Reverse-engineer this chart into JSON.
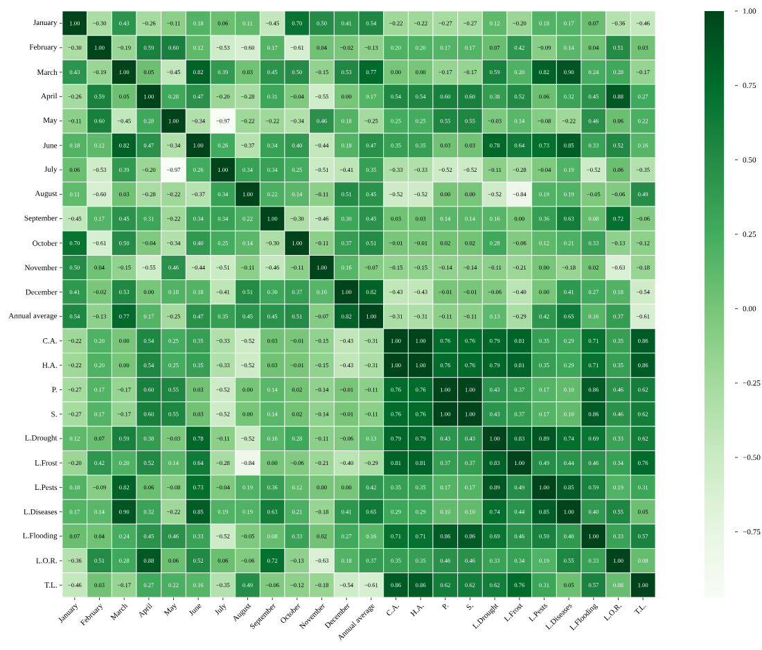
{
  "chart_data": {
    "type": "heatmap",
    "categories": [
      "January",
      "February",
      "March",
      "April",
      "May",
      "June",
      "July",
      "August",
      "September",
      "October",
      "November",
      "December",
      "Annual average",
      "C.A.",
      "H.A.",
      "P.",
      "S.",
      "L.Drought",
      "L.Frost",
      "L.Pests",
      "L.Diseases",
      "L.Flooding",
      "L.O.R.",
      "T.L."
    ],
    "y_categories": [
      "January",
      "February",
      "March",
      "April",
      "May",
      "June",
      "July",
      "August",
      "September",
      "October",
      "November",
      "December",
      "Annual average",
      "C.A.",
      "H.A.",
      "P.",
      "S.",
      "L.Drought",
      "L.Frost",
      "L.Pests",
      "L.Diseases",
      "L.Flooding",
      "L.O.R.",
      "T.L."
    ],
    "cells": [
      [
        1.0,
        -0.3,
        0.43,
        -0.26,
        -0.11,
        0.18,
        0.06,
        0.11,
        -0.45,
        0.7,
        0.5,
        0.41,
        0.54,
        -0.22,
        -0.22,
        -0.27,
        -0.27,
        0.12,
        -0.2,
        0.18,
        0.17,
        0.07,
        -0.36,
        -0.46
      ],
      [
        -0.3,
        1.0,
        -0.19,
        0.59,
        0.6,
        0.12,
        -0.53,
        -0.6,
        0.17,
        -0.61,
        0.04,
        -0.02,
        -0.13,
        0.2,
        0.2,
        0.17,
        0.17,
        0.07,
        0.42,
        -0.09,
        0.14,
        0.04,
        0.51,
        0.03
      ],
      [
        0.43,
        -0.19,
        1.0,
        0.05,
        -0.45,
        0.82,
        0.39,
        0.03,
        0.45,
        0.5,
        -0.15,
        0.53,
        0.77,
        0.0,
        0.0,
        -0.17,
        -0.17,
        0.59,
        0.2,
        0.82,
        0.9,
        0.24,
        0.28,
        -0.17
      ],
      [
        -0.26,
        0.59,
        0.05,
        1.0,
        0.28,
        0.47,
        -0.2,
        -0.28,
        0.31,
        -0.04,
        -0.55,
        0.0,
        0.17,
        0.54,
        0.54,
        0.6,
        0.6,
        0.38,
        0.52,
        0.06,
        0.32,
        0.45,
        0.88,
        0.27
      ],
      [
        -0.11,
        0.6,
        -0.45,
        0.28,
        1.0,
        -0.34,
        -0.97,
        -0.22,
        -0.22,
        -0.34,
        0.46,
        0.18,
        -0.25,
        0.25,
        0.25,
        0.55,
        0.55,
        -0.03,
        0.14,
        -0.08,
        -0.22,
        0.46,
        0.06,
        0.22
      ],
      [
        0.18,
        0.12,
        0.82,
        0.47,
        -0.34,
        1.0,
        0.26,
        -0.37,
        0.34,
        0.4,
        -0.44,
        0.18,
        0.47,
        0.35,
        0.35,
        0.03,
        0.03,
        0.78,
        0.64,
        0.73,
        0.85,
        0.33,
        0.52,
        0.16
      ],
      [
        0.06,
        -0.53,
        0.39,
        -0.2,
        -0.97,
        0.26,
        1.0,
        0.34,
        0.34,
        0.25,
        -0.51,
        -0.41,
        0.35,
        -0.33,
        -0.33,
        -0.52,
        -0.52,
        -0.11,
        -0.28,
        -0.04,
        0.19,
        -0.52,
        0.06,
        -0.35
      ],
      [
        0.11,
        -0.6,
        0.03,
        -0.28,
        -0.22,
        -0.37,
        0.34,
        1.0,
        0.22,
        0.14,
        -0.11,
        0.51,
        0.45,
        -0.52,
        -0.52,
        0.0,
        0.0,
        -0.52,
        -0.84,
        0.19,
        0.19,
        -0.05,
        -0.06,
        0.49
      ],
      [
        -0.45,
        0.17,
        0.45,
        0.31,
        -0.22,
        0.34,
        0.34,
        0.22,
        1.0,
        -0.3,
        -0.46,
        0.3,
        0.45,
        0.03,
        0.03,
        0.14,
        0.14,
        0.16,
        0.0,
        0.36,
        0.63,
        0.08,
        0.72,
        -0.06
      ],
      [
        0.7,
        -0.61,
        0.5,
        -0.04,
        -0.34,
        0.4,
        0.25,
        0.14,
        -0.3,
        1.0,
        -0.11,
        0.37,
        0.51,
        -0.01,
        -0.01,
        0.02,
        0.02,
        0.28,
        -0.06,
        0.12,
        0.21,
        0.33,
        -0.13,
        -0.12
      ],
      [
        0.5,
        0.04,
        -0.15,
        -0.55,
        0.46,
        -0.44,
        -0.51,
        -0.11,
        -0.46,
        -0.11,
        1.0,
        0.16,
        -0.07,
        -0.15,
        -0.15,
        -0.14,
        -0.14,
        -0.11,
        -0.21,
        0.0,
        -0.18,
        0.02,
        -0.63,
        -0.18
      ],
      [
        0.41,
        -0.02,
        0.53,
        0.0,
        0.18,
        0.18,
        -0.41,
        0.51,
        0.3,
        0.37,
        0.16,
        1.0,
        0.82,
        -0.43,
        -0.43,
        -0.01,
        -0.01,
        -0.06,
        -0.4,
        0.0,
        0.41,
        0.27,
        0.18,
        -0.54
      ],
      [
        0.54,
        -0.13,
        0.77,
        0.17,
        -0.25,
        0.47,
        0.35,
        0.45,
        0.45,
        0.51,
        -0.07,
        0.82,
        1.0,
        -0.31,
        -0.31,
        -0.11,
        -0.11,
        0.13,
        -0.29,
        0.42,
        0.65,
        0.16,
        0.37,
        -0.61
      ],
      [
        -0.22,
        0.2,
        0.0,
        0.54,
        0.25,
        0.35,
        -0.33,
        -0.52,
        0.03,
        -0.01,
        -0.15,
        -0.43,
        -0.31,
        1.0,
        1.0,
        0.76,
        0.76,
        0.79,
        0.81,
        0.35,
        0.29,
        0.71,
        0.35,
        0.86
      ],
      [
        -0.22,
        0.2,
        0.0,
        0.54,
        0.25,
        0.35,
        -0.33,
        -0.52,
        0.03,
        -0.01,
        -0.15,
        -0.43,
        -0.31,
        1.0,
        1.0,
        0.76,
        0.76,
        0.79,
        0.81,
        0.35,
        0.29,
        0.71,
        0.35,
        0.86
      ],
      [
        -0.27,
        0.17,
        -0.17,
        0.6,
        0.55,
        0.03,
        -0.52,
        0.0,
        0.14,
        0.02,
        -0.14,
        -0.01,
        -0.11,
        0.76,
        0.76,
        1.0,
        1.0,
        0.43,
        0.37,
        0.17,
        0.1,
        0.86,
        0.46,
        0.62
      ],
      [
        -0.27,
        0.17,
        -0.17,
        0.6,
        0.55,
        0.03,
        -0.52,
        0.0,
        0.14,
        0.02,
        -0.14,
        -0.01,
        -0.11,
        0.76,
        0.76,
        1.0,
        1.0,
        0.43,
        0.37,
        0.17,
        0.1,
        0.86,
        0.46,
        0.62
      ],
      [
        0.12,
        0.07,
        0.59,
        0.38,
        -0.03,
        0.78,
        -0.11,
        -0.52,
        0.16,
        0.28,
        -0.11,
        -0.06,
        0.13,
        0.79,
        0.79,
        0.43,
        0.43,
        1.0,
        0.83,
        0.89,
        0.74,
        0.69,
        0.33,
        0.62
      ],
      [
        -0.2,
        0.42,
        0.2,
        0.52,
        0.14,
        0.64,
        -0.28,
        -0.84,
        0.0,
        -0.06,
        -0.21,
        -0.4,
        -0.29,
        0.81,
        0.81,
        0.37,
        0.37,
        0.83,
        1.0,
        0.49,
        0.44,
        0.46,
        0.34,
        0.76
      ],
      [
        0.18,
        -0.09,
        0.82,
        0.06,
        -0.08,
        0.73,
        -0.04,
        0.19,
        0.36,
        0.12,
        0.0,
        0.0,
        0.42,
        0.35,
        0.35,
        0.17,
        0.17,
        0.89,
        0.49,
        1.0,
        0.85,
        0.59,
        0.19,
        0.31
      ],
      [
        0.17,
        0.14,
        0.9,
        0.32,
        -0.22,
        0.85,
        0.19,
        0.19,
        0.63,
        0.21,
        -0.18,
        0.41,
        0.65,
        0.29,
        0.29,
        0.1,
        0.1,
        0.74,
        0.44,
        0.85,
        1.0,
        0.4,
        0.55,
        0.05
      ],
      [
        0.07,
        0.04,
        0.24,
        0.45,
        0.46,
        0.33,
        -0.52,
        -0.05,
        0.08,
        0.33,
        0.02,
        0.27,
        0.16,
        0.71,
        0.71,
        0.86,
        0.86,
        0.69,
        0.46,
        0.59,
        0.4,
        1.0,
        0.33,
        0.57
      ],
      [
        -0.36,
        0.51,
        0.28,
        0.88,
        0.06,
        0.52,
        0.06,
        -0.06,
        0.72,
        -0.13,
        -0.63,
        0.18,
        0.37,
        0.35,
        0.35,
        0.46,
        0.46,
        0.33,
        0.34,
        0.19,
        0.55,
        0.33,
        1.0,
        0.08
      ],
      [
        -0.46,
        0.03,
        -0.17,
        0.27,
        0.22,
        0.16,
        -0.35,
        0.49,
        -0.06,
        -0.12,
        -0.18,
        -0.54,
        -0.61,
        0.86,
        0.86,
        0.62,
        0.62,
        0.62,
        0.76,
        0.31,
        0.05,
        0.57,
        0.08,
        1.0
      ]
    ],
    "cell_labels": [
      [
        "1.00",
        "−0.30",
        "0.43",
        "−0.26",
        "−0.11",
        "0.18",
        "0.06",
        "0.11",
        "−0.45",
        "0.70",
        "0.50",
        "0.41",
        "0.54",
        "−0.22",
        "−0.22",
        "−0.27",
        "−0.27",
        "0.12",
        "−0.20",
        "0.18",
        "0.17",
        "0.07",
        "−0.36",
        "−0.46"
      ],
      [
        "−0.30",
        "1.00",
        "−0.19",
        "0.59",
        "0.60",
        "0.12",
        "−0.53",
        "−0.60",
        "0.17",
        "−0.61",
        "0.04",
        "−0.02",
        "−0.13",
        "0.20",
        "0.20",
        "0.17",
        "0.17",
        "0.07",
        "0.42",
        "−0.09",
        "0.14",
        "0.04",
        "0.51",
        "0.03"
      ],
      [
        "0.43",
        "−0.19",
        "1.00",
        "0.05",
        "−0.45",
        "0.82",
        "0.39",
        "0.03",
        "0.45",
        "0.50",
        "−0.15",
        "0.53",
        "0.77",
        "0.00",
        "0.00",
        "−0.17",
        "−0.17",
        "0.59",
        "0.20",
        "0.82",
        "0.90",
        "0.24",
        "0.28",
        "−0.17"
      ],
      [
        "−0.26",
        "0.59",
        "0.05",
        "1.00",
        "0.28",
        "0.47",
        "−0.20",
        "−0.28",
        "0.31",
        "−0.04",
        "−0.55",
        "0.00",
        "0.17",
        "0.54",
        "0.54",
        "0.60",
        "0.60",
        "0.38",
        "0.52",
        "0.06",
        "0.32",
        "0.45",
        "0.88",
        "0.27"
      ],
      [
        "−0.11",
        "0.60",
        "−0.45",
        "0.28",
        "1.00",
        "−0.34",
        "−0.97",
        "−0.22",
        "−0.22",
        "−0.34",
        "0.46",
        "0.18",
        "−0.25",
        "0.25",
        "0.25",
        "0.55",
        "0.55",
        "−0.03",
        "0.14",
        "−0.08",
        "−0.22",
        "0.46",
        "0.06",
        "0.22"
      ],
      [
        "0.18",
        "0.12",
        "0.82",
        "0.47",
        "−0.34",
        "1.00",
        "0.26",
        "−0.37",
        "0.34",
        "0.40",
        "−0.44",
        "0.18",
        "0.47",
        "0.35",
        "0.35",
        "0.03",
        "0.03",
        "0.78",
        "0.64",
        "0.73",
        "0.85",
        "0.33",
        "0.52",
        "0.16"
      ],
      [
        "0.06",
        "−0.53",
        "0.39",
        "−0.20",
        "−0.97",
        "0.26",
        "1.00",
        "0.34",
        "0.34",
        "0.25",
        "−0.51",
        "−0.41",
        "0.35",
        "−0.33",
        "−0.33",
        "−0.52",
        "−0.52",
        "−0.11",
        "−0.28",
        "−0.04",
        "0.19",
        "−0.52",
        "0.06",
        "−0.35"
      ],
      [
        "0.11",
        "−0.60",
        "0.03",
        "−0.28",
        "−0.22",
        "−0.37",
        "0.34",
        "1.00",
        "0.22",
        "0.14",
        "−0.11",
        "0.51",
        "0.45",
        "−0.52",
        "−0.52",
        "0.00",
        "0.00",
        "−0.52",
        "−0.84",
        "0.19",
        "0.19",
        "−0.05",
        "−0.06",
        "0.49"
      ],
      [
        "−0.45",
        "0.17",
        "0.45",
        "0.31",
        "−0.22",
        "0.34",
        "0.34",
        "0.22",
        "1.00",
        "−0.30",
        "−0.46",
        "0.30",
        "0.45",
        "0.03",
        "0.03",
        "0.14",
        "0.14",
        "0.16",
        "0.00",
        "0.36",
        "0.63",
        "0.08",
        "0.72",
        "−0.06"
      ],
      [
        "0.70",
        "−0.61",
        "0.50",
        "−0.04",
        "−0.34",
        "0.40",
        "0.25",
        "0.14",
        "−0.30",
        "1.00",
        "−0.11",
        "0.37",
        "0.51",
        "−0.01",
        "−0.01",
        "0.02",
        "0.02",
        "0.28",
        "−0.06",
        "0.12",
        "0.21",
        "0.33",
        "−0.13",
        "−0.12"
      ],
      [
        "0.50",
        "0.04",
        "−0.15",
        "−0.55",
        "0.46",
        "−0.44",
        "−0.51",
        "−0.11",
        "−0.46",
        "−0.11",
        "1.00",
        "0.16",
        "−0.07",
        "−0.15",
        "−0.15",
        "−0.14",
        "−0.14",
        "−0.11",
        "−0.21",
        "0.00",
        "−0.18",
        "0.02",
        "−0.63",
        "−0.18"
      ],
      [
        "0.41",
        "−0.02",
        "0.53",
        "0.00",
        "0.18",
        "0.18",
        "−0.41",
        "0.51",
        "0.30",
        "0.37",
        "0.16",
        "1.00",
        "0.82",
        "−0.43",
        "−0.43",
        "−0.01",
        "−0.01",
        "−0.06",
        "−0.40",
        "0.00",
        "0.41",
        "0.27",
        "0.18",
        "−0.54"
      ],
      [
        "0.54",
        "−0.13",
        "0.77",
        "0.17",
        "−0.25",
        "0.47",
        "0.35",
        "0.45",
        "0.45",
        "0.51",
        "−0.07",
        "0.82",
        "1.00",
        "−0.31",
        "−0.31",
        "−0.11",
        "−0.11",
        "0.13",
        "−0.29",
        "0.42",
        "0.65",
        "0.16",
        "0.37",
        "−0.61"
      ],
      [
        "−0.22",
        "0.20",
        "0.00",
        "0.54",
        "0.25",
        "0.35",
        "−0.33",
        "−0.52",
        "0.03",
        "−0.01",
        "−0.15",
        "−0.43",
        "−0.31",
        "1.00",
        "1.00",
        "0.76",
        "0.76",
        "0.79",
        "0.81",
        "0.35",
        "0.29",
        "0.71",
        "0.35",
        "0.86"
      ],
      [
        "−0.22",
        "0.20",
        "0.00",
        "0.54",
        "0.25",
        "0.35",
        "−0.33",
        "−0.52",
        "0.03",
        "−0.01",
        "−0.15",
        "−0.43",
        "−0.31",
        "1.00",
        "1.00",
        "0.76",
        "0.76",
        "0.79",
        "0.81",
        "0.35",
        "0.29",
        "0.71",
        "0.35",
        "0.86"
      ],
      [
        "−0.27",
        "0.17",
        "−0.17",
        "0.60",
        "0.55",
        "0.03",
        "−0.52",
        "0.00",
        "0.14",
        "0.02",
        "−0.14",
        "−0.01",
        "−0.11",
        "0.76",
        "0.76",
        "1.00",
        "1.00",
        "0.43",
        "0.37",
        "0.17",
        "0.10",
        "0.86",
        "0.46",
        "0.62"
      ],
      [
        "−0.27",
        "0.17",
        "−0.17",
        "0.60",
        "0.55",
        "0.03",
        "−0.52",
        "0.00",
        "0.14",
        "0.02",
        "−0.14",
        "−0.01",
        "−0.11",
        "0.76",
        "0.76",
        "1.00",
        "1.00",
        "0.43",
        "0.37",
        "0.17",
        "0.10",
        "0.86",
        "0.46",
        "0.62"
      ],
      [
        "0.12",
        "0.07",
        "0.59",
        "0.38",
        "−0.03",
        "0.78",
        "−0.11",
        "−0.52",
        "0.16",
        "0.28",
        "−0.11",
        "−0.06",
        "0.13",
        "0.79",
        "0.79",
        "0.43",
        "0.43",
        "1.00",
        "0.83",
        "0.89",
        "0.74",
        "0.69",
        "0.33",
        "0.62"
      ],
      [
        "−0.20",
        "0.42",
        "0.20",
        "0.52",
        "0.14",
        "0.64",
        "−0.28",
        "−0.84",
        "0.00",
        "−0.06",
        "−0.21",
        "−0.40",
        "−0.29",
        "0.81",
        "0.81",
        "0.37",
        "0.37",
        "0.83",
        "1.00",
        "0.49",
        "0.44",
        "0.46",
        "0.34",
        "0.76"
      ],
      [
        "0.18",
        "−0.09",
        "0.82",
        "0.06",
        "−0.08",
        "0.73",
        "−0.04",
        "0.19",
        "0.36",
        "0.12",
        "0.00",
        "0.00",
        "0.42",
        "0.35",
        "0.35",
        "0.17",
        "0.17",
        "0.89",
        "0.49",
        "1.00",
        "0.85",
        "0.59",
        "0.19",
        "0.31"
      ],
      [
        "0.17",
        "0.14",
        "0.90",
        "0.32",
        "−0.22",
        "0.85",
        "0.19",
        "0.19",
        "0.63",
        "0.21",
        "−0.18",
        "0.41",
        "0.65",
        "0.29",
        "0.29",
        "0.10",
        "0.10",
        "0.74",
        "0.44",
        "0.85",
        "1.00",
        "0.40",
        "0.55",
        "0.05"
      ],
      [
        "0.07",
        "0.04",
        "0.24",
        "0.45",
        "0.46",
        "0.33",
        "−0.52",
        "−0.05",
        "0.08",
        "0.33",
        "0.02",
        "0.27",
        "0.16",
        "0.71",
        "0.71",
        "0.86",
        "0.86",
        "0.69",
        "0.46",
        "0.59",
        "0.40",
        "1.00",
        "0.33",
        "0.57"
      ],
      [
        "−0.36",
        "0.51",
        "0.28",
        "0.88",
        "0.06",
        "0.52",
        "0.06",
        "−0.06",
        "0.72",
        "−0.13",
        "−0.63",
        "0.18",
        "0.37",
        "0.35",
        "0.35",
        "0.46",
        "0.46",
        "0.33",
        "0.34",
        "0.19",
        "0.55",
        "0.33",
        "1.00",
        "0.08"
      ],
      [
        "−0.46",
        "0.03",
        "−0.17",
        "0.27",
        "0.22",
        "0.16",
        "−0.35",
        "0.49",
        "−0.06",
        "−0.12",
        "−0.18",
        "−0.54",
        "−0.61",
        "0.86",
        "0.86",
        "0.62",
        "0.62",
        "0.62",
        "0.76",
        "0.31",
        "0.05",
        "0.57",
        "0.08",
        "1.00"
      ]
    ],
    "clim": [
      -0.97,
      1.0
    ],
    "cticks": [
      {
        "value": 1.0,
        "label": "1.00"
      },
      {
        "value": 0.75,
        "label": "0.75"
      },
      {
        "value": 0.5,
        "label": "0.50"
      },
      {
        "value": 0.25,
        "label": "0.25"
      },
      {
        "value": 0.0,
        "label": "0.00"
      },
      {
        "value": -0.25,
        "label": "−0.25"
      },
      {
        "value": -0.5,
        "label": "−0.50"
      },
      {
        "value": -0.75,
        "label": "−0.75"
      }
    ]
  }
}
